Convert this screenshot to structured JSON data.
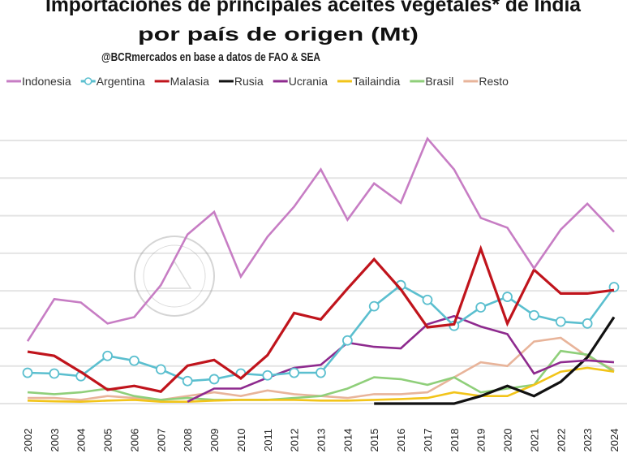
{
  "chart_data": {
    "type": "line",
    "title": "Importaciones de principales aceites vegetales* de India",
    "title_line2": "por país de origen (Mt)",
    "subtitle": "@BCRmercados en base a datos de FAO & SEA",
    "xlabel": "",
    "ylabel": "Mt",
    "ylim": [
      0,
      7
    ],
    "grid": true,
    "legend_position": "top",
    "x": [
      "2002",
      "2003",
      "2004",
      "2005",
      "2006",
      "2007",
      "2008",
      "2009",
      "2010",
      "2011",
      "2012",
      "2013",
      "2014",
      "2015",
      "2016",
      "2017",
      "2018",
      "2019",
      "2020",
      "2021",
      "2022",
      "2023",
      "2024"
    ],
    "series": [
      {
        "name": "Indonesia",
        "color": "#c77dc4",
        "marker": false,
        "values": [
          1.66,
          2.78,
          2.69,
          2.13,
          2.3,
          3.15,
          4.5,
          5.1,
          3.38,
          4.44,
          5.24,
          6.23,
          4.89,
          5.86,
          5.34,
          7.05,
          6.23,
          4.94,
          4.68,
          3.6,
          4.63,
          5.32,
          4.57
        ]
      },
      {
        "name": "Argentina",
        "color": "#5bbfcf",
        "marker": true,
        "values": [
          0.82,
          0.8,
          0.73,
          1.27,
          1.14,
          0.91,
          0.6,
          0.65,
          0.8,
          0.75,
          0.82,
          0.82,
          1.68,
          2.59,
          3.15,
          2.76,
          2.07,
          2.56,
          2.84,
          2.35,
          2.18,
          2.13,
          3.1
        ]
      },
      {
        "name": "Malasia",
        "color": "#c0141c",
        "marker": false,
        "values": [
          1.38,
          1.27,
          0.84,
          0.37,
          0.47,
          0.32,
          1.01,
          1.16,
          0.67,
          1.29,
          2.41,
          2.24,
          3.06,
          3.84,
          3.04,
          2.03,
          2.11,
          4.12,
          2.13,
          3.56,
          2.93,
          2.93,
          3.02
        ]
      },
      {
        "name": "Rusia",
        "color": "#111111",
        "marker": false,
        "values": [
          null,
          null,
          null,
          null,
          null,
          null,
          null,
          null,
          null,
          null,
          null,
          null,
          null,
          0,
          0,
          0,
          0,
          0.2,
          0.47,
          0.2,
          0.58,
          1.23,
          2.3
        ]
      },
      {
        "name": "Ucrania",
        "color": "#8e2a8e",
        "marker": false,
        "values": [
          null,
          null,
          null,
          null,
          null,
          null,
          0.05,
          0.4,
          0.4,
          0.69,
          0.95,
          1.03,
          1.62,
          1.51,
          1.47,
          2.11,
          2.33,
          2.05,
          1.85,
          0.8,
          1.1,
          1.15,
          1.1
        ]
      },
      {
        "name": "Tailaindia",
        "color": "#f2c419",
        "marker": false,
        "values": [
          0.08,
          0.06,
          0.05,
          0.08,
          0.1,
          0.05,
          0.05,
          0.08,
          0.1,
          0.1,
          0.1,
          0.08,
          0.08,
          0.1,
          0.12,
          0.15,
          0.3,
          0.2,
          0.2,
          0.5,
          0.85,
          0.95,
          0.85
        ]
      },
      {
        "name": "Brasil",
        "color": "#8fcf7a",
        "marker": false,
        "values": [
          0.3,
          0.25,
          0.3,
          0.4,
          0.2,
          0.1,
          0.15,
          0.1,
          0.1,
          0.1,
          0.15,
          0.2,
          0.4,
          0.7,
          0.65,
          0.5,
          0.7,
          0.3,
          0.4,
          0.5,
          1.4,
          1.3,
          0.85
        ]
      },
      {
        "name": "Resto",
        "color": "#e8b49a",
        "marker": false,
        "values": [
          0.15,
          0.15,
          0.1,
          0.2,
          0.15,
          0.1,
          0.2,
          0.3,
          0.2,
          0.35,
          0.25,
          0.2,
          0.15,
          0.25,
          0.25,
          0.3,
          0.7,
          1.1,
          1.0,
          1.65,
          1.75,
          1.25,
          0.9
        ]
      }
    ]
  }
}
